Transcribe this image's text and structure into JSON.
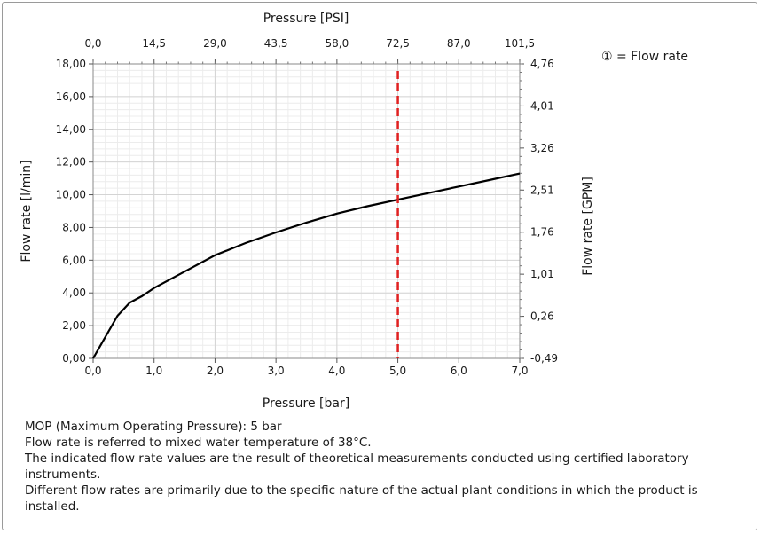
{
  "chart_data": {
    "type": "line",
    "legend_label": "① = Flow rate",
    "xlabel_bottom": "Pressure [bar]",
    "xlabel_top": "Pressure [PSI]",
    "ylabel_left": "Flow rate [l/min]",
    "ylabel_right": "Flow rate [GPM]",
    "xlim": [
      0,
      7
    ],
    "ylim": [
      0,
      18
    ],
    "x_ticks": [
      "0,0",
      "1,0",
      "2,0",
      "3,0",
      "4,0",
      "5,0",
      "6,0",
      "7,0"
    ],
    "x_top_ticks": [
      "0,0",
      "14,5",
      "29,0",
      "43,5",
      "58,0",
      "72,5",
      "87,0",
      "101,5"
    ],
    "y_ticks": [
      "0,00",
      "2,00",
      "4,00",
      "6,00",
      "8,00",
      "10,00",
      "12,00",
      "14,00",
      "16,00",
      "18,00"
    ],
    "y_right_ticks": [
      "-0,49",
      "0,26",
      "1,01",
      "1,76",
      "2,51",
      "3,26",
      "4,01",
      "4,76"
    ],
    "grid": true,
    "series": [
      {
        "name": "Flow rate",
        "color": "#000000",
        "x": [
          0,
          0.2,
          0.4,
          0.6,
          0.8,
          1.0,
          1.5,
          2.0,
          2.5,
          3.0,
          3.5,
          4.0,
          4.5,
          5.0,
          5.5,
          6.0,
          6.5,
          7.0
        ],
        "y": [
          0,
          1.3,
          2.6,
          3.4,
          3.8,
          4.3,
          5.3,
          6.3,
          7.05,
          7.7,
          8.3,
          8.85,
          9.3,
          9.7,
          10.1,
          10.5,
          10.9,
          11.3
        ]
      }
    ],
    "mop_line": {
      "x": 5.0,
      "color": "#e02020"
    }
  },
  "notes": [
    "MOP (Maximum Operating Pressure): 5 bar",
    "Flow rate is referred to mixed water temperature of 38°C.",
    "The indicated flow rate values are the result of theoretical measurements conducted using certified laboratory instruments.",
    "Different flow rates are primarily due to the specific nature of the actual plant conditions in which the product is installed."
  ]
}
